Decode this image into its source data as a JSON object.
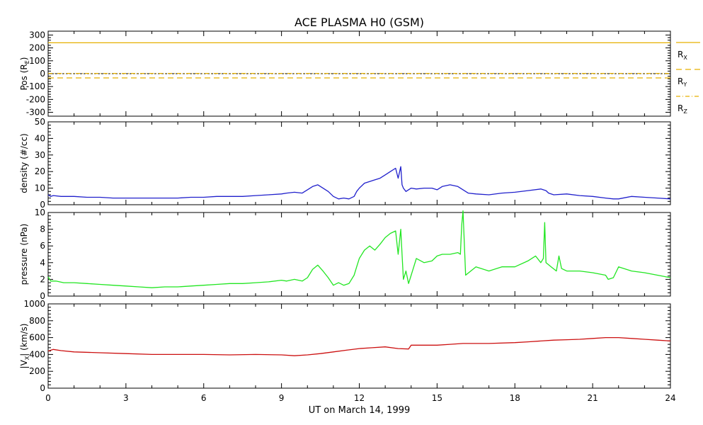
{
  "chart_data": {
    "type": "line",
    "title": "ACE PLASMA H0 (GSM)",
    "xlabel": "UT on March 14, 1999",
    "xlim": [
      0,
      24
    ],
    "xticks": [
      0,
      3,
      6,
      9,
      12,
      15,
      18,
      21,
      24
    ],
    "xtick_labels": [
      "0",
      "3",
      "6",
      "9",
      "12",
      "15",
      "18",
      "21",
      "24"
    ],
    "colors": {
      "position": "#e6b000",
      "density": "#2020cc",
      "pressure": "#22e622",
      "velocity": "#cc1010"
    },
    "panels": [
      {
        "id": "position",
        "ylabel_main": "Pos (R",
        "ylabel_sub": "E",
        "ylabel_end": ")",
        "ylim": [
          -330,
          330
        ],
        "yticks": [
          300,
          200,
          100,
          0,
          -100,
          -200,
          -300
        ],
        "ytick_labels": [
          "300",
          "200",
          "100",
          "0",
          "-100",
          "-200",
          "-300"
        ],
        "zero_line": true,
        "legend": [
          {
            "main": "R",
            "sub": "X",
            "style": "solid"
          },
          {
            "main": "R",
            "sub": "Y",
            "style": "dashed"
          },
          {
            "main": "R",
            "sub": "Z",
            "style": "dashdot"
          }
        ],
        "series": [
          {
            "label_index": 0,
            "style": "solid",
            "x": [
              0,
              24
            ],
            "y": [
              240,
              240
            ]
          },
          {
            "label_index": 1,
            "style": "dashed",
            "x": [
              0,
              24
            ],
            "y": [
              -33,
              -33
            ]
          },
          {
            "label_index": 2,
            "style": "dashdot",
            "x": [
              0,
              24
            ],
            "y": [
              2,
              2
            ]
          }
        ]
      },
      {
        "id": "density",
        "ylabel_main": "density (#/cc)",
        "ylim": [
          0,
          50
        ],
        "yticks": [
          0,
          10,
          20,
          30,
          40,
          50
        ],
        "ytick_labels": [
          "0",
          "10",
          "20",
          "30",
          "40",
          "50"
        ],
        "series": [
          {
            "x": [
              0,
              0.1,
              0.2,
              0.5,
              1,
              1.5,
              2,
              2.5,
              3,
              3.5,
              4,
              4.5,
              5,
              5.5,
              6,
              6.5,
              7,
              7.5,
              8,
              8.5,
              9,
              9.2,
              9.5,
              9.8,
              10.0,
              10.2,
              10.4,
              10.6,
              10.8,
              11.0,
              11.2,
              11.4,
              11.6,
              11.8,
              11.9,
              12.0,
              12.2,
              12.4,
              12.6,
              12.8,
              13.0,
              13.2,
              13.4,
              13.5,
              13.6,
              13.65,
              13.7,
              13.8,
              13.9,
              14.0,
              14.2,
              14.5,
              14.8,
              15.0,
              15.2,
              15.5,
              15.8,
              16.0,
              16.2,
              16.5,
              17,
              17.5,
              18,
              18.5,
              19,
              19.2,
              19.3,
              19.5,
              20,
              20.5,
              21,
              21.5,
              21.8,
              22,
              22.5,
              23,
              23.5,
              24
            ],
            "y": [
              6,
              5,
              5.5,
              5,
              5,
              4.5,
              4.5,
              4,
              4,
              4,
              4,
              4,
              4,
              4.5,
              4.5,
              5,
              5,
              5,
              5.5,
              6,
              6.5,
              7,
              7.5,
              7,
              9,
              11,
              12,
              10,
              8,
              5,
              3.5,
              4,
              3.5,
              5,
              8,
              10,
              13,
              14,
              15,
              16,
              18,
              20,
              22,
              16,
              23,
              12,
              10,
              8,
              9,
              10,
              9.5,
              10,
              10,
              9,
              11,
              12,
              11,
              9,
              7,
              6.5,
              6,
              7,
              7.5,
              8.5,
              9.5,
              8.5,
              7,
              6,
              6.5,
              5.5,
              5,
              4,
              3.5,
              3.5,
              5,
              4.5,
              4,
              3.5
            ]
          }
        ]
      },
      {
        "id": "pressure",
        "ylabel_main": "pressure (nPa)",
        "ylim": [
          0,
          10
        ],
        "yticks": [
          0,
          2,
          4,
          6,
          8,
          10
        ],
        "ytick_labels": [
          "0",
          "2",
          "4",
          "6",
          "8",
          "10"
        ],
        "series": [
          {
            "x": [
              0,
              0.1,
              0.3,
              0.6,
              1,
              1.5,
              2,
              2.5,
              3,
              3.5,
              4,
              4.5,
              5,
              5.5,
              6,
              6.5,
              7,
              7.5,
              8,
              8.5,
              9,
              9.2,
              9.5,
              9.8,
              10.0,
              10.2,
              10.4,
              10.6,
              10.8,
              11.0,
              11.2,
              11.4,
              11.6,
              11.8,
              11.9,
              12.0,
              12.2,
              12.4,
              12.6,
              12.8,
              13.0,
              13.2,
              13.4,
              13.5,
              13.6,
              13.65,
              13.7,
              13.8,
              13.9,
              14.0,
              14.2,
              14.5,
              14.8,
              15.0,
              15.2,
              15.5,
              15.8,
              15.9,
              15.95,
              16.0,
              16.1,
              16.5,
              17,
              17.5,
              18,
              18.5,
              18.8,
              19.0,
              19.1,
              19.15,
              19.2,
              19.4,
              19.6,
              19.7,
              19.8,
              20,
              20.5,
              21,
              21.5,
              21.6,
              21.8,
              22,
              22.5,
              23,
              23.5,
              24
            ],
            "y": [
              2.3,
              1.8,
              1.8,
              1.6,
              1.6,
              1.5,
              1.4,
              1.3,
              1.2,
              1.1,
              1.0,
              1.1,
              1.1,
              1.2,
              1.3,
              1.4,
              1.5,
              1.5,
              1.6,
              1.7,
              1.9,
              1.8,
              2.0,
              1.8,
              2.2,
              3.2,
              3.7,
              3.0,
              2.2,
              1.3,
              1.6,
              1.3,
              1.5,
              2.5,
              3.5,
              4.5,
              5.5,
              6.0,
              5.5,
              6.2,
              7.0,
              7.5,
              7.8,
              5.0,
              8.0,
              5.0,
              2.0,
              3.0,
              1.5,
              2.5,
              4.5,
              4.0,
              4.2,
              4.8,
              5.0,
              5.0,
              5.2,
              5.0,
              8.5,
              10.2,
              2.5,
              3.5,
              3.0,
              3.5,
              3.5,
              4.2,
              4.8,
              4.0,
              4.5,
              8.8,
              4.0,
              3.5,
              3.0,
              4.8,
              3.3,
              3.0,
              3.0,
              2.8,
              2.5,
              2.0,
              2.2,
              3.5,
              3.0,
              2.8,
              2.5,
              2.2
            ]
          }
        ]
      },
      {
        "id": "velocity",
        "ylabel_main": "|V",
        "ylabel_sub": "X",
        "ylabel_end": "| (km/s)",
        "ylim": [
          0,
          1000
        ],
        "yticks": [
          0,
          200,
          400,
          600,
          800,
          1000
        ],
        "ytick_labels": [
          "0",
          "200",
          "400",
          "600",
          "800",
          "1000"
        ],
        "series": [
          {
            "x": [
              0,
              0.2,
              0.5,
              1,
              2,
              3,
              4,
              5,
              6,
              7,
              8,
              9,
              9.5,
              10,
              10.5,
              11,
              11.5,
              12,
              12.5,
              13,
              13.5,
              13.9,
              14.0,
              14.5,
              15,
              15.5,
              16,
              17,
              18,
              18.5,
              19,
              19.5,
              20,
              20.5,
              21,
              21.5,
              22,
              22.5,
              23,
              23.5,
              24
            ],
            "y": [
              440,
              460,
              445,
              430,
              420,
              410,
              400,
              400,
              400,
              395,
              400,
              395,
              385,
              395,
              410,
              430,
              450,
              470,
              480,
              490,
              470,
              465,
              510,
              510,
              510,
              520,
              530,
              530,
              540,
              550,
              560,
              570,
              575,
              580,
              590,
              600,
              600,
              590,
              580,
              570,
              560
            ]
          }
        ]
      }
    ]
  }
}
